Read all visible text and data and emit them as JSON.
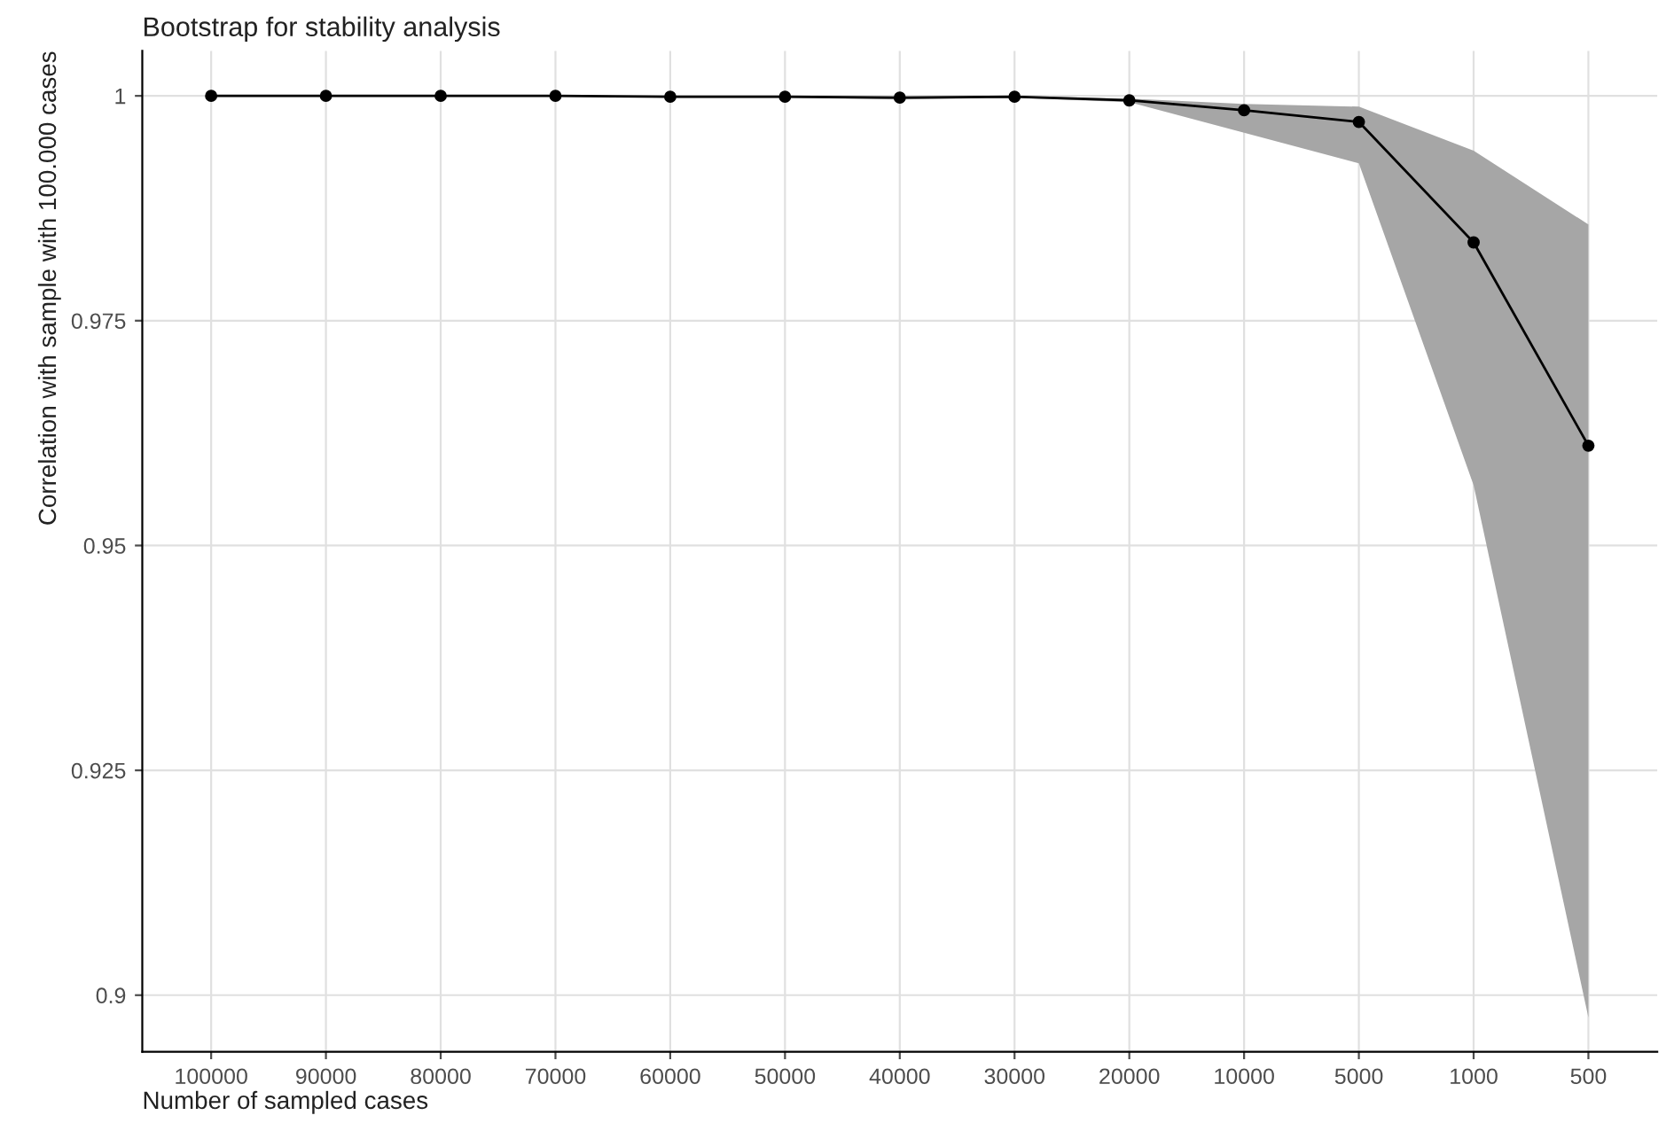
{
  "chart_data": {
    "type": "line",
    "title": "Bootstrap for stability analysis",
    "xlabel": "Number of sampled cases",
    "ylabel": "Correlation with sample with 100.000 cases",
    "categories": [
      "100000",
      "90000",
      "80000",
      "70000",
      "60000",
      "50000",
      "40000",
      "30000",
      "20000",
      "10000",
      "5000",
      "1000",
      "500"
    ],
    "series": [
      {
        "color": "#000000",
        "values": [
          1.0,
          1.0,
          1.0,
          1.0,
          0.9999,
          0.9999,
          0.9998,
          0.9999,
          0.9995,
          0.9984,
          0.9971,
          0.9837,
          0.9611
        ],
        "lower": [
          1.0,
          1.0,
          1.0,
          1.0,
          0.9998,
          0.9998,
          0.9996,
          0.9998,
          0.9993,
          0.9959,
          0.9925,
          0.9567,
          0.8975
        ],
        "upper": [
          1.0,
          1.0,
          1.0,
          1.0,
          1.0,
          1.0,
          0.9999,
          1.0,
          0.9997,
          0.9991,
          0.9988,
          0.9939,
          0.9857
        ]
      }
    ],
    "ylim": [
      0.8937,
      1.005
    ],
    "yticks": [
      {
        "value": 0.9,
        "label": "0.9"
      },
      {
        "value": 0.925,
        "label": "0.925"
      },
      {
        "value": 0.95,
        "label": "0.95"
      },
      {
        "value": 0.975,
        "label": "0.975"
      },
      {
        "value": 1,
        "label": "1"
      }
    ],
    "grid": true,
    "marker": "circle",
    "line_style": "solid"
  }
}
